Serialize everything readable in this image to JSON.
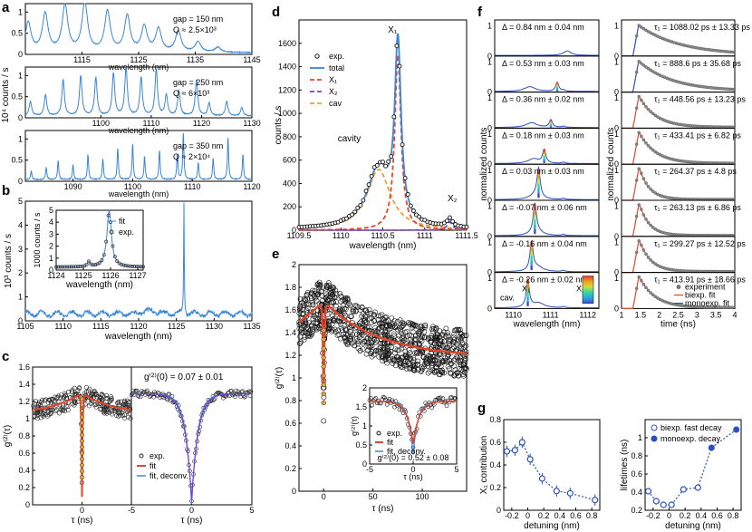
{
  "chart_data": [
    {
      "panel": "a",
      "type": "line",
      "ylabel": "10⁴ counts / s",
      "subplots": [
        {
          "xlim": [
            1105,
            1145
          ],
          "ylim": [
            0,
            1.2
          ],
          "xticks": [
            1115,
            1125,
            1135,
            1145
          ],
          "yticks": [
            0,
            0.5,
            1
          ],
          "xlabel": "wavelength (nm)",
          "annotation_1": "gap = 150 nm",
          "annotation_2": "Q ≈ 2.5×10³",
          "peaks": [
            {
              "x": 1105.5,
              "h": 0.7
            },
            {
              "x": 1108.5,
              "h": 0.9
            },
            {
              "x": 1112,
              "h": 1.1
            },
            {
              "x": 1115.5,
              "h": 1.15
            },
            {
              "x": 1119.5,
              "h": 0.95
            },
            {
              "x": 1123,
              "h": 0.85
            },
            {
              "x": 1126,
              "h": 0.6
            },
            {
              "x": 1128.5,
              "h": 0.55
            },
            {
              "x": 1132,
              "h": 0.5
            },
            {
              "x": 1135.5,
              "h": 0.25
            },
            {
              "x": 1139,
              "h": 0.12
            }
          ]
        },
        {
          "xlim": [
            1085,
            1130
          ],
          "ylim": [
            0,
            1.2
          ],
          "xticks": [
            1100,
            1110,
            1120,
            1130
          ],
          "yticks": [
            0,
            0.5,
            1
          ],
          "xlabel": "wavelength (nm)",
          "annotation_1": "gap = 250 nm",
          "annotation_2": "Q ≈ 6×10³",
          "peaks": [
            {
              "x": 1086,
              "h": 0.35
            },
            {
              "x": 1089,
              "h": 0.5
            },
            {
              "x": 1092.5,
              "h": 0.85
            },
            {
              "x": 1096,
              "h": 0.95
            },
            {
              "x": 1099,
              "h": 0.9
            },
            {
              "x": 1102.5,
              "h": 1.0
            },
            {
              "x": 1105,
              "h": 1.15
            },
            {
              "x": 1108,
              "h": 0.9
            },
            {
              "x": 1111,
              "h": 1.1
            },
            {
              "x": 1113,
              "h": 0.5
            },
            {
              "x": 1115.5,
              "h": 0.6
            },
            {
              "x": 1119,
              "h": 0.85
            },
            {
              "x": 1121.5,
              "h": 0.3
            },
            {
              "x": 1125,
              "h": 0.35
            },
            {
              "x": 1128,
              "h": 0.2
            }
          ]
        },
        {
          "xlim": [
            1082,
            1120
          ],
          "ylim": [
            0,
            1.2
          ],
          "xticks": [
            1090,
            1100,
            1110,
            1120
          ],
          "yticks": [
            0,
            0.5,
            1
          ],
          "xlabel": "wavelength (nm)",
          "annotation_1": "gap = 350 nm",
          "annotation_2": "Q ≈ 2×10⁴",
          "peaks": [
            {
              "x": 1083,
              "h": 0.2
            },
            {
              "x": 1085.5,
              "h": 0.3
            },
            {
              "x": 1087.5,
              "h": 0.45
            },
            {
              "x": 1090,
              "h": 0.35
            },
            {
              "x": 1092.5,
              "h": 0.6
            },
            {
              "x": 1095,
              "h": 0.5
            },
            {
              "x": 1097.5,
              "h": 0.75
            },
            {
              "x": 1100,
              "h": 0.85
            },
            {
              "x": 1102,
              "h": 0.55
            },
            {
              "x": 1104.5,
              "h": 0.7
            },
            {
              "x": 1107.5,
              "h": 0.6
            },
            {
              "x": 1108.5,
              "h": 1.1
            },
            {
              "x": 1111,
              "h": 0.4
            },
            {
              "x": 1113.5,
              "h": 0.5
            },
            {
              "x": 1116,
              "h": 1.0
            },
            {
              "x": 1118.5,
              "h": 0.6
            }
          ]
        }
      ]
    },
    {
      "panel": "b",
      "type": "line",
      "xlabel": "wavelength (nm)",
      "ylabel": "10³ counts / s",
      "xlim": [
        1105,
        1135
      ],
      "ylim": [
        0,
        5
      ],
      "xticks": [
        1105,
        1110,
        1115,
        1120,
        1125,
        1130,
        1135
      ],
      "yticks": [
        0,
        1,
        2,
        3,
        4,
        5
      ],
      "main_peak": {
        "x": 1126,
        "h": 4.7
      },
      "inset": {
        "xlim": [
          1124,
          1127.2
        ],
        "ylim": [
          0,
          5
        ],
        "xticks": [
          1124,
          1125,
          1126,
          1127
        ],
        "yticks": [
          0,
          1,
          2,
          3,
          4,
          5
        ],
        "xlabel": "wavelength (nm)",
        "ylabel": "1000 counts / s",
        "legend": [
          "fit",
          "exp."
        ]
      }
    },
    {
      "panel": "c",
      "type": "scatter",
      "ylabel": "g⁽²⁾(τ)",
      "subplots": [
        {
          "xlim": [
            -40,
            40
          ],
          "ylim": [
            0,
            1.6
          ],
          "xticks": [
            0
          ],
          "yticks": [
            0,
            0.2,
            0.4,
            0.6,
            0.8,
            1,
            1.2,
            1.4,
            1.6
          ],
          "xlabel": "τ (ns)"
        },
        {
          "xlim": [
            -5,
            5
          ],
          "ylim": [
            0,
            1.6
          ],
          "xticks": [
            -5,
            0,
            5
          ],
          "xlabel": "τ (ns)",
          "annotation": "g⁽²⁾(0) = 0.07 ± 0.01",
          "legend": [
            "exp.",
            "fit",
            "fit, deconv."
          ]
        }
      ]
    },
    {
      "panel": "d",
      "type": "line",
      "xlabel": "wavelength (nm)",
      "ylabel": "counts / s",
      "xlim": [
        1109.5,
        1111.5
      ],
      "ylim": [
        0,
        1800
      ],
      "xticks": [
        1109.5,
        1110,
        1110.5,
        1111,
        1111.5
      ],
      "yticks": [
        0,
        200,
        400,
        600,
        800,
        1000,
        1200,
        1400,
        1600
      ],
      "legend": [
        "exp.",
        "total",
        "X₁",
        "X₂",
        "cav"
      ],
      "annotations": [
        "X₁",
        "X₂",
        "cavity"
      ],
      "components": {
        "x1": {
          "x": 1110.68,
          "h": 1500,
          "w": 0.045
        },
        "x2": {
          "x": 1111.3,
          "h": 70,
          "w": 0.04
        },
        "cav": {
          "x": 1110.45,
          "h": 520,
          "w": 0.17
        }
      }
    },
    {
      "panel": "e",
      "type": "scatter",
      "xlabel": "τ (ns)",
      "ylabel": "g⁽²⁾(τ)",
      "xlim": [
        -25,
        145
      ],
      "ylim": [
        0,
        2
      ],
      "xticks": [
        0,
        50,
        100
      ],
      "yticks": [
        0,
        0.2,
        0.4,
        0.6,
        0.8,
        1,
        1.2,
        1.4,
        1.6,
        1.8,
        2
      ],
      "inset": {
        "xlim": [
          -5,
          5
        ],
        "ylim": [
          0,
          2
        ],
        "xticks": [
          -5,
          0,
          5
        ],
        "yticks": [
          0,
          0.5,
          1,
          1.5,
          2
        ],
        "xlabel": "τ (ns)",
        "ylabel": "g⁽²⁾(τ)",
        "legend": [
          "exp.",
          "fit",
          "fit, deconv."
        ],
        "annotation": "g⁽²⁾(0) = 0.52 ± 0.08"
      }
    },
    {
      "panel": "f",
      "type": "line",
      "left": {
        "xlabel": "wavelength (nm)",
        "ylabel": "normalized counts",
        "xlim": [
          1109.5,
          1112.3
        ],
        "ylim": [
          0,
          1
        ],
        "xticks": [
          1110,
          1111,
          1112
        ],
        "yticks": [
          0,
          1
        ],
        "detunings": [
          "Δ = 0.84 nm ± 0.04 nm",
          "Δ = 0.53 nm ± 0.03 nm",
          "Δ = 0.36 nm ± 0.02 nm",
          "Δ = 0.18 nm ± 0.03 nm",
          "Δ = 0.03 nm ± 0.03 nm",
          "Δ = -0.07 nm ± 0.06 nm",
          "Δ = -0.16 nm ± 0.04 nm",
          "Δ = -0.26 nm ± 0.02 nm"
        ],
        "labels": [
          "X₁",
          "X₂",
          "cav."
        ]
      },
      "right": {
        "xlabel": "time (ns)",
        "ylabel": "normalized counts",
        "xlim": [
          1,
          4
        ],
        "ylim": [
          0,
          1
        ],
        "xticks": [
          1,
          1.5,
          2,
          2.5,
          3,
          3.5,
          4
        ],
        "yticks": [
          0,
          1
        ],
        "lifetimes": [
          "τ₁ = 1088.02 ps ± 13.33 ps",
          "τ₁ = 888.6 ps ± 35.68 ps",
          "τ₁ = 448.56 ps ± 13.23 ps",
          "τ₁ = 433.41 ps ± 6.82 ps",
          "τ₁ = 264.37 ps ± 4.8 ps",
          "τ₁ = 263.13 ps ± 6.86 ps",
          "τ₁ = 299.27 ps ± 12.52 ps",
          "τ₁ = 413.91 ps ± 18.66 ps"
        ],
        "tau_ns": [
          1.088,
          0.889,
          0.449,
          0.433,
          0.264,
          0.263,
          0.299,
          0.414
        ],
        "legend": [
          "experiment",
          "biexp. fit",
          "monoexp. fit"
        ]
      }
    },
    {
      "panel": "g",
      "type": "scatter",
      "left": {
        "xlabel": "detuning (nm)",
        "ylabel": "X₁ contribution",
        "xlim": [
          -0.3,
          0.9
        ],
        "ylim": [
          0,
          0.8
        ],
        "xticks": [
          -0.2,
          0,
          0.2,
          0.4,
          0.6,
          0.8
        ],
        "yticks": [
          0,
          0.2,
          0.4,
          0.6,
          0.8
        ],
        "x": [
          -0.26,
          -0.16,
          -0.07,
          0.03,
          0.18,
          0.36,
          0.53,
          0.84
        ],
        "y": [
          0.52,
          0.53,
          0.6,
          0.45,
          0.28,
          0.17,
          0.15,
          0.09
        ]
      },
      "right": {
        "xlabel": "detuning (nm)",
        "ylabel": "lifetimes (ns)",
        "xlim": [
          -0.3,
          0.9
        ],
        "ylim": [
          0.2,
          1.2
        ],
        "xticks": [
          -0.2,
          0,
          0.2,
          0.4,
          0.6,
          0.8
        ],
        "yticks": [
          0.2,
          0.4,
          0.6,
          0.8,
          1
        ],
        "legend": [
          "biexp. fast decay",
          "monoexp. decay"
        ],
        "biexp_x": [
          -0.26,
          -0.16,
          -0.07,
          0.03,
          0.18,
          0.36
        ],
        "biexp_y": [
          0.41,
          0.3,
          0.26,
          0.26,
          0.43,
          0.45
        ],
        "mono_x": [
          0.53,
          0.84
        ],
        "mono_y": [
          0.89,
          1.09
        ]
      }
    }
  ],
  "panel_labels": {
    "a": "a",
    "b": "b",
    "c": "c",
    "d": "d",
    "e": "e",
    "f": "f",
    "g": "g"
  }
}
